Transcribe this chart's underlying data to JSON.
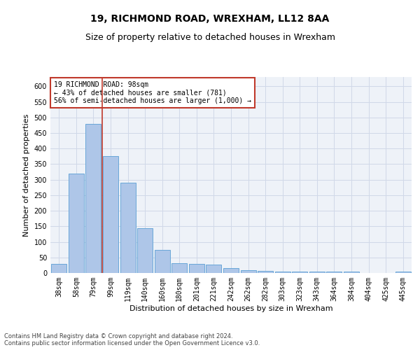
{
  "title1": "19, RICHMOND ROAD, WREXHAM, LL12 8AA",
  "title2": "Size of property relative to detached houses in Wrexham",
  "xlabel": "Distribution of detached houses by size in Wrexham",
  "ylabel": "Number of detached properties",
  "categories": [
    "38sqm",
    "58sqm",
    "79sqm",
    "99sqm",
    "119sqm",
    "140sqm",
    "160sqm",
    "180sqm",
    "201sqm",
    "221sqm",
    "242sqm",
    "262sqm",
    "282sqm",
    "303sqm",
    "323sqm",
    "343sqm",
    "364sqm",
    "384sqm",
    "404sqm",
    "425sqm",
    "445sqm"
  ],
  "values": [
    30,
    320,
    480,
    375,
    290,
    143,
    75,
    32,
    29,
    27,
    16,
    8,
    7,
    5,
    4,
    4,
    4,
    4,
    0,
    0,
    5
  ],
  "bar_color": "#aec6e8",
  "bar_edge_color": "#5a9fd4",
  "vline_x": 2.5,
  "vline_color": "#c0392b",
  "annotation_box_text": "19 RICHMOND ROAD: 98sqm\n← 43% of detached houses are smaller (781)\n56% of semi-detached houses are larger (1,000) →",
  "annotation_box_color": "#c0392b",
  "ylim": [
    0,
    630
  ],
  "yticks": [
    0,
    50,
    100,
    150,
    200,
    250,
    300,
    350,
    400,
    450,
    500,
    550,
    600
  ],
  "grid_color": "#d0d8e8",
  "background_color": "#eef2f8",
  "footer": "Contains HM Land Registry data © Crown copyright and database right 2024.\nContains public sector information licensed under the Open Government Licence v3.0.",
  "title1_fontsize": 10,
  "title2_fontsize": 9,
  "xlabel_fontsize": 8,
  "ylabel_fontsize": 8,
  "tick_fontsize": 7,
  "ann_fontsize": 7,
  "footer_fontsize": 6
}
